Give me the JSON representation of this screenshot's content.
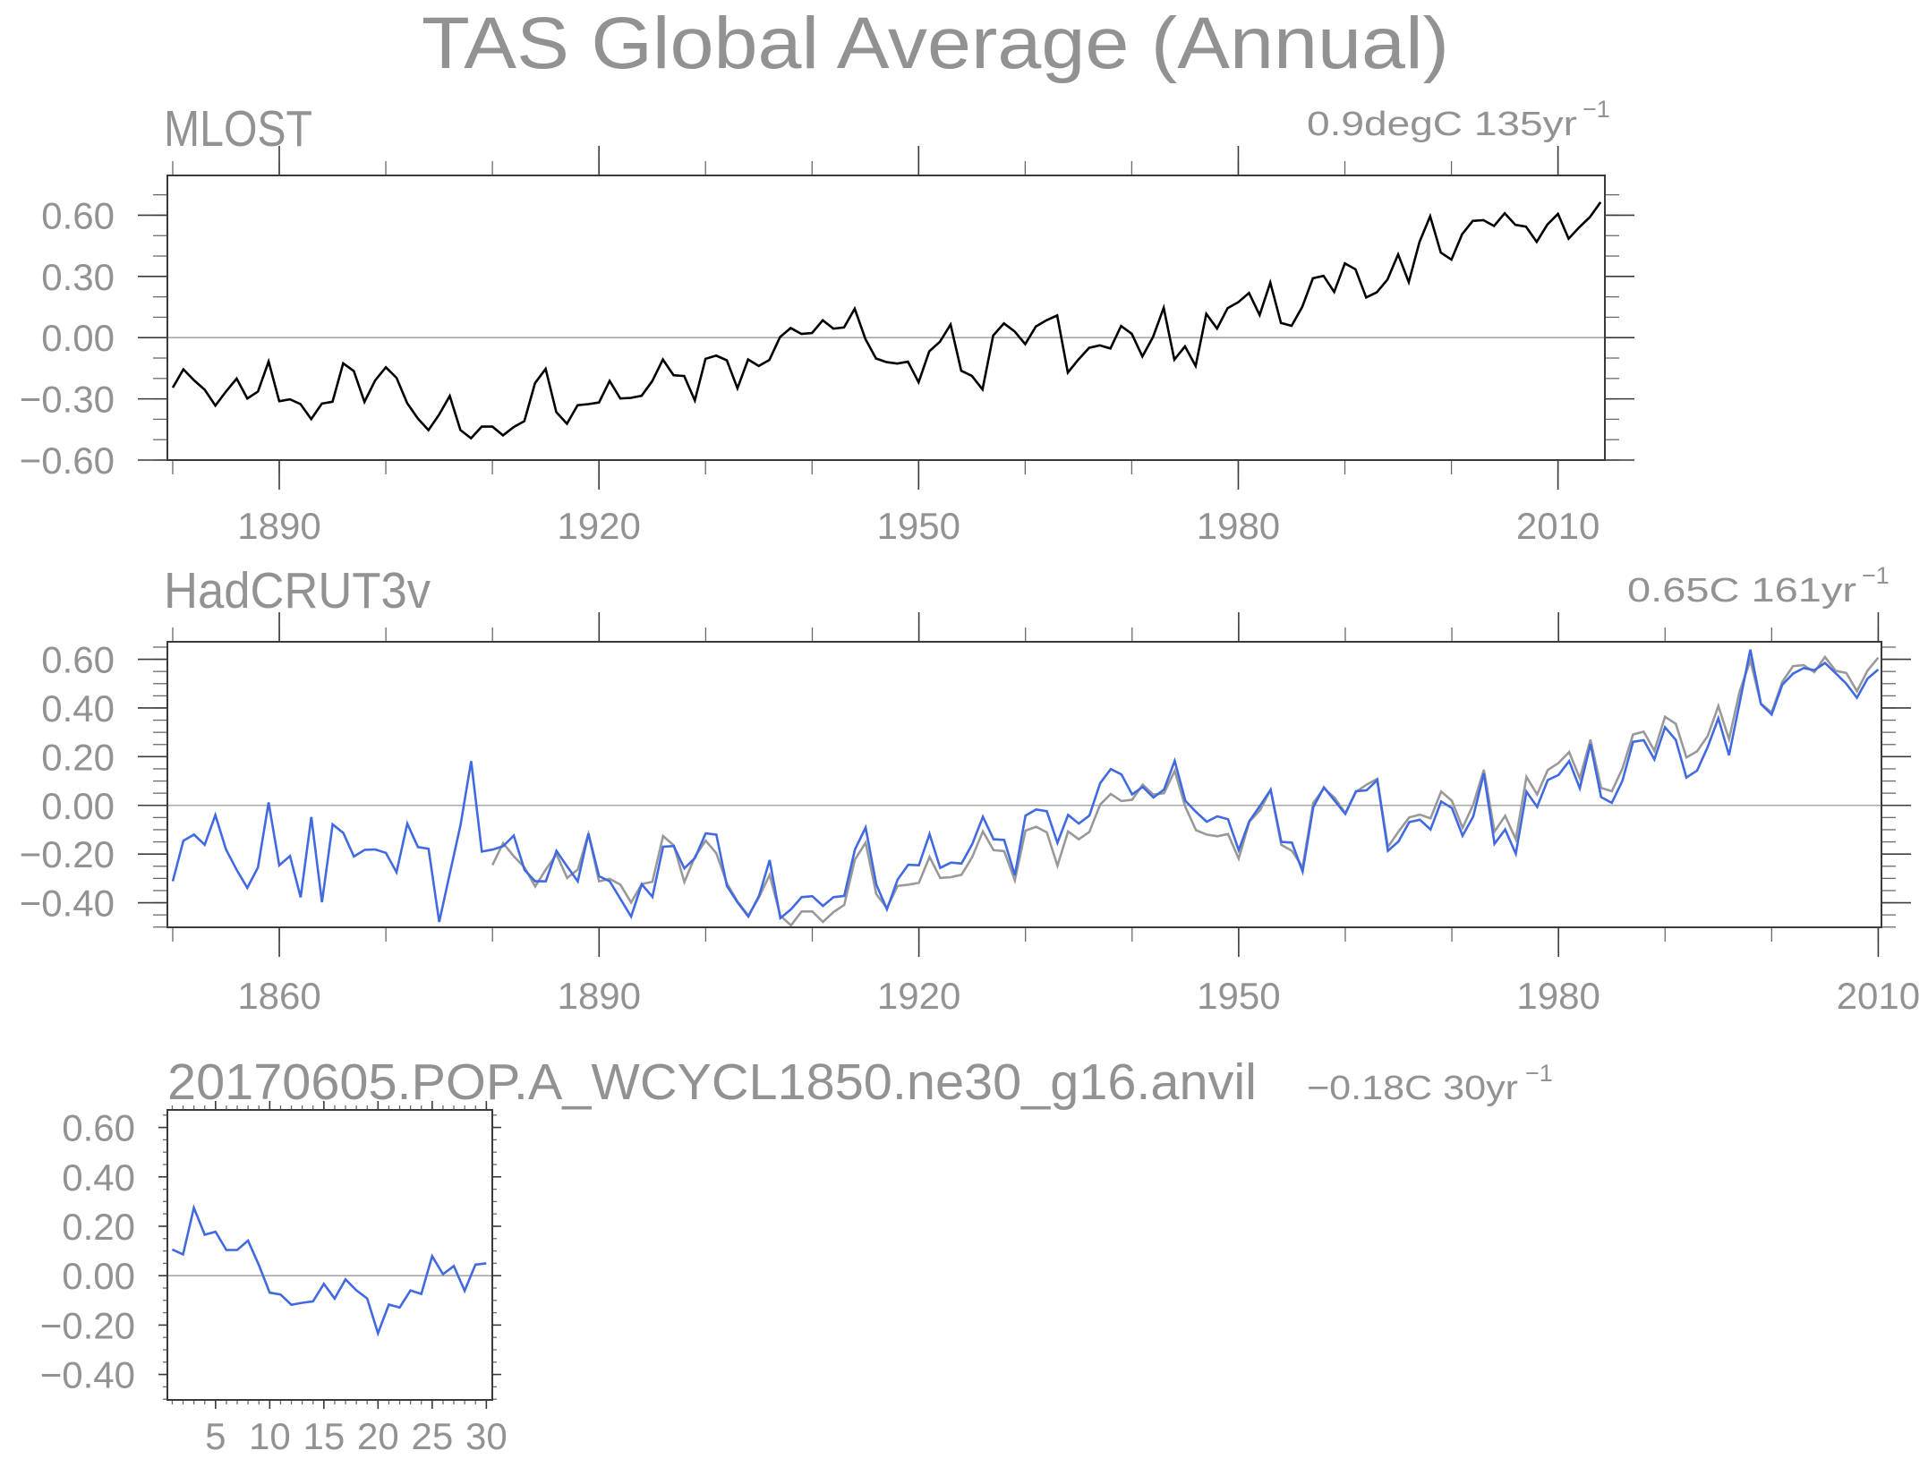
{
  "title": "TAS Global Average (Annual)",
  "chart_data": [
    {
      "type": "line",
      "title": "MLOST",
      "trend_text": "0.9degC 135yr",
      "trend_exp": "−1",
      "xlim": [
        1879.5,
        2014.4
      ],
      "ylim": [
        -0.6,
        0.795
      ],
      "xticks": [
        "1890",
        "1920",
        "1950",
        "1980",
        "2010"
      ],
      "yticks": [
        "0.60",
        "0.30",
        "0.00",
        "−0.30",
        "−0.60"
      ],
      "grid": false,
      "series": [
        {
          "color": "#000000",
          "x_start": 1880,
          "values": [
            -0.245,
            -0.155,
            -0.209,
            -0.255,
            -0.333,
            -0.264,
            -0.201,
            -0.298,
            -0.264,
            -0.117,
            -0.312,
            -0.302,
            -0.326,
            -0.399,
            -0.323,
            -0.314,
            -0.126,
            -0.164,
            -0.315,
            -0.21,
            -0.145,
            -0.197,
            -0.321,
            -0.396,
            -0.453,
            -0.377,
            -0.286,
            -0.453,
            -0.493,
            -0.436,
            -0.436,
            -0.479,
            -0.438,
            -0.409,
            -0.223,
            -0.153,
            -0.365,
            -0.422,
            -0.331,
            -0.326,
            -0.318,
            -0.212,
            -0.298,
            -0.295,
            -0.285,
            -0.213,
            -0.107,
            -0.184,
            -0.188,
            -0.308,
            -0.104,
            -0.088,
            -0.111,
            -0.248,
            -0.107,
            -0.139,
            -0.109,
            0.003,
            0.047,
            0.018,
            0.023,
            0.085,
            0.044,
            0.05,
            0.142,
            -0.006,
            -0.102,
            -0.12,
            -0.127,
            -0.118,
            -0.219,
            -0.067,
            -0.02,
            0.064,
            -0.162,
            -0.187,
            -0.254,
            0.01,
            0.07,
            0.031,
            -0.032,
            0.055,
            0.085,
            0.109,
            -0.171,
            -0.107,
            -0.05,
            -0.038,
            -0.053,
            0.057,
            0.019,
            -0.092,
            0.003,
            0.146,
            -0.108,
            -0.043,
            -0.139,
            0.117,
            0.045,
            0.145,
            0.174,
            0.219,
            0.111,
            0.27,
            0.072,
            0.058,
            0.151,
            0.291,
            0.303,
            0.224,
            0.364,
            0.335,
            0.197,
            0.222,
            0.285,
            0.408,
            0.272,
            0.469,
            0.595,
            0.417,
            0.382,
            0.507,
            0.572,
            0.576,
            0.547,
            0.61,
            0.553,
            0.544,
            0.469,
            0.554,
            0.607,
            0.485,
            0.541,
            0.591,
            0.664
          ]
        }
      ]
    },
    {
      "type": "line",
      "title": "HadCRUT3v",
      "trend_text": "0.65C 161yr",
      "trend_exp": "−1",
      "xlim": [
        1849.5,
        2010.3
      ],
      "ylim": [
        -0.501,
        0.672
      ],
      "xticks": [
        "1860",
        "1890",
        "1920",
        "1950",
        "1980",
        "2010"
      ],
      "yticks": [
        "0.60",
        "0.40",
        "0.20",
        "0.00",
        "−0.20",
        "−0.40"
      ],
      "grid": false,
      "series": [
        {
          "color": "#999999",
          "x_start": 1880,
          "values": [
            -0.245,
            -0.155,
            -0.209,
            -0.255,
            -0.333,
            -0.264,
            -0.201,
            -0.298,
            -0.264,
            -0.117,
            -0.312,
            -0.302,
            -0.326,
            -0.399,
            -0.323,
            -0.314,
            -0.126,
            -0.164,
            -0.315,
            -0.21,
            -0.145,
            -0.197,
            -0.321,
            -0.396,
            -0.453,
            -0.377,
            -0.286,
            -0.453,
            -0.493,
            -0.436,
            -0.436,
            -0.479,
            -0.438,
            -0.409,
            -0.223,
            -0.153,
            -0.365,
            -0.422,
            -0.331,
            -0.326,
            -0.318,
            -0.212,
            -0.298,
            -0.295,
            -0.285,
            -0.213,
            -0.107,
            -0.184,
            -0.188,
            -0.308,
            -0.104,
            -0.088,
            -0.111,
            -0.248,
            -0.107,
            -0.139,
            -0.109,
            0.003,
            0.047,
            0.018,
            0.023,
            0.085,
            0.044,
            0.05,
            0.142,
            -0.006,
            -0.102,
            -0.12,
            -0.127,
            -0.118,
            -0.219,
            -0.067,
            -0.02,
            0.064,
            -0.162,
            -0.187,
            -0.254,
            0.01,
            0.07,
            0.031,
            -0.032,
            0.055,
            0.085,
            0.109,
            -0.171,
            -0.107,
            -0.05,
            -0.038,
            -0.053,
            0.057,
            0.019,
            -0.092,
            0.003,
            0.146,
            -0.108,
            -0.043,
            -0.139,
            0.117,
            0.045,
            0.145,
            0.174,
            0.219,
            0.111,
            0.27,
            0.072,
            0.058,
            0.151,
            0.291,
            0.303,
            0.224,
            0.364,
            0.335,
            0.197,
            0.222,
            0.285,
            0.408,
            0.272,
            0.469,
            0.595,
            0.417,
            0.382,
            0.507,
            0.572,
            0.576,
            0.547,
            0.61,
            0.553,
            0.544,
            0.469,
            0.554,
            0.607
          ]
        },
        {
          "color": "#4169e1",
          "x_start": 1850,
          "values": [
            -0.312,
            -0.145,
            -0.12,
            -0.162,
            -0.04,
            -0.181,
            -0.265,
            -0.339,
            -0.255,
            0.012,
            -0.246,
            -0.208,
            -0.378,
            -0.048,
            -0.398,
            -0.078,
            -0.113,
            -0.21,
            -0.183,
            -0.181,
            -0.195,
            -0.275,
            -0.075,
            -0.171,
            -0.178,
            -0.479,
            -0.279,
            -0.081,
            0.182,
            -0.19,
            -0.182,
            -0.168,
            -0.124,
            -0.265,
            -0.312,
            -0.312,
            -0.187,
            -0.251,
            -0.312,
            -0.116,
            -0.291,
            -0.312,
            -0.384,
            -0.457,
            -0.324,
            -0.376,
            -0.17,
            -0.167,
            -0.259,
            -0.216,
            -0.115,
            -0.12,
            -0.332,
            -0.399,
            -0.457,
            -0.372,
            -0.225,
            -0.463,
            -0.427,
            -0.377,
            -0.373,
            -0.413,
            -0.377,
            -0.372,
            -0.182,
            -0.091,
            -0.325,
            -0.427,
            -0.305,
            -0.244,
            -0.246,
            -0.118,
            -0.257,
            -0.235,
            -0.239,
            -0.16,
            -0.047,
            -0.139,
            -0.142,
            -0.287,
            -0.042,
            -0.017,
            -0.024,
            -0.154,
            -0.039,
            -0.075,
            -0.042,
            0.091,
            0.149,
            0.127,
            0.045,
            0.076,
            0.032,
            0.065,
            0.183,
            0.019,
            -0.027,
            -0.067,
            -0.045,
            -0.057,
            -0.184,
            -0.065,
            -0.002,
            0.064,
            -0.15,
            -0.153,
            -0.272,
            -0.008,
            0.074,
            0.019,
            -0.035,
            0.058,
            0.062,
            0.104,
            -0.187,
            -0.148,
            -0.069,
            -0.059,
            -0.099,
            0.016,
            -0.011,
            -0.125,
            -0.046,
            0.131,
            -0.158,
            -0.099,
            -0.199,
            0.056,
            -0.006,
            0.104,
            0.125,
            0.182,
            0.07,
            0.252,
            0.034,
            0.01,
            0.101,
            0.261,
            0.268,
            0.189,
            0.321,
            0.269,
            0.114,
            0.143,
            0.24,
            0.358,
            0.206,
            0.422,
            0.64,
            0.416,
            0.373,
            0.495,
            0.541,
            0.564,
            0.555,
            0.585,
            0.543,
            0.5,
            0.442,
            0.521,
            0.558
          ]
        }
      ]
    },
    {
      "type": "line",
      "title": "20170605.POP.A_WCYCL1850.ne30_g16.anvil",
      "trend_text": "−0.18C 30yr",
      "trend_exp": "−1",
      "xlim": [
        0.55,
        30.55
      ],
      "ylim": [
        -0.503,
        0.671
      ],
      "xticks": [
        "5",
        "10",
        "15",
        "20",
        "25",
        "30"
      ],
      "yticks": [
        "0.60",
        "0.40",
        "0.20",
        "0.00",
        "−0.20",
        "−0.40"
      ],
      "grid": false,
      "series": [
        {
          "color": "#4169e1",
          "x_start": 1,
          "values": [
            0.106,
            0.086,
            0.275,
            0.166,
            0.178,
            0.104,
            0.104,
            0.142,
            0.043,
            -0.069,
            -0.076,
            -0.118,
            -0.11,
            -0.104,
            -0.033,
            -0.093,
            -0.015,
            -0.059,
            -0.092,
            -0.233,
            -0.117,
            -0.129,
            -0.06,
            -0.074,
            0.079,
            0.006,
            0.039,
            -0.061,
            0.045,
            0.05
          ]
        }
      ]
    }
  ]
}
